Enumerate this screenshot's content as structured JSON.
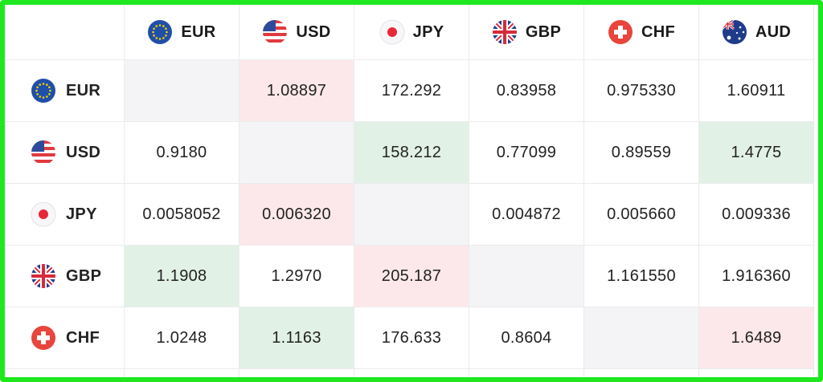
{
  "table": {
    "columns": [
      "EUR",
      "USD",
      "JPY",
      "GBP",
      "CHF",
      "AUD"
    ],
    "rows": [
      {
        "label": "EUR",
        "cells": [
          null,
          "1.08897",
          "172.292",
          "0.83958",
          "0.975330",
          "1.60911"
        ]
      },
      {
        "label": "USD",
        "cells": [
          "0.9180",
          null,
          "158.212",
          "0.77099",
          "0.89559",
          "1.4775"
        ]
      },
      {
        "label": "JPY",
        "cells": [
          "0.0058052",
          "0.006320",
          null,
          "0.004872",
          "0.005660",
          "0.009336"
        ]
      },
      {
        "label": "GBP",
        "cells": [
          "1.1908",
          "1.2970",
          "205.187",
          null,
          "1.161550",
          "1.916360"
        ]
      },
      {
        "label": "CHF",
        "cells": [
          "1.0248",
          "1.1163",
          "176.633",
          "0.8604",
          null,
          "1.6489"
        ]
      }
    ],
    "cell_colors": [
      [
        "#f4f4f6",
        "#fce8ea",
        null,
        null,
        null,
        null
      ],
      [
        null,
        "#f4f4f6",
        "#e2f1e5",
        null,
        null,
        "#e2f1e5"
      ],
      [
        null,
        "#fce8ea",
        "#f4f4f6",
        null,
        null,
        null
      ],
      [
        "#e2f1e5",
        null,
        "#fce8ea",
        "#f4f4f6",
        null,
        null
      ],
      [
        null,
        "#e2f1e5",
        null,
        null,
        "#f4f4f6",
        "#fce8ea"
      ]
    ]
  }
}
